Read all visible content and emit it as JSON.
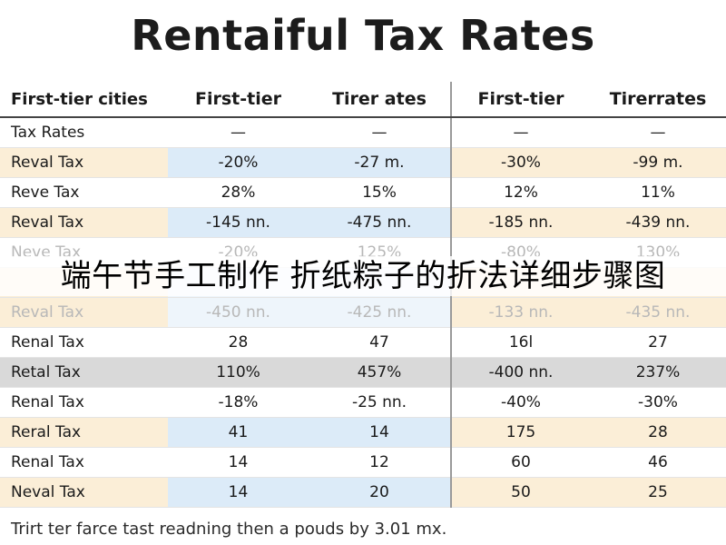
{
  "title": "Rentaiful Tax Rates",
  "banner_text": "端午节手工制作 折纸粽子的折法详细步骤图",
  "footnote": "Trirt ter farce tast readning then a pouds by 3.01 mx.",
  "colors": {
    "beige_row": "#fbeed7",
    "blue_cell": "#dcebf8",
    "grey_row": "#d9d9d9"
  },
  "chart_data": {
    "type": "table",
    "title": "Rentaiful Tax Rates",
    "columns": [
      "First-tier cities",
      "First-tier",
      "Tirer ates",
      "First-tier",
      "Tirerrates"
    ],
    "rows": [
      {
        "label": "Tax Rates",
        "values": [
          "—",
          "—",
          "—",
          "—"
        ],
        "style": "white"
      },
      {
        "label": "Reval Tax",
        "values": [
          "-20%",
          "-27 m.",
          "-30%",
          "-99 m."
        ],
        "style": "beige"
      },
      {
        "label": "Reve Tax",
        "values": [
          "28%",
          "15%",
          "12%",
          "11%"
        ],
        "style": "white"
      },
      {
        "label": "Reval Tax",
        "values": [
          "-145 nn.",
          "-475 nn.",
          "-185 nn.",
          "-439 nn."
        ],
        "style": "beige"
      },
      {
        "label": "Neve Tax",
        "values": [
          "-20%",
          "125%",
          "-80%",
          "130%"
        ],
        "style": "faded"
      },
      {
        "label": "",
        "values": [
          "",
          "",
          "",
          ""
        ],
        "style": "faded-beige"
      },
      {
        "label": "Reval Tax",
        "values": [
          "-450 nn.",
          "-425 nn.",
          "-133 nn.",
          "-435 nn."
        ],
        "style": "faded-beige"
      },
      {
        "label": "Renal Tax",
        "values": [
          "28",
          "47",
          "16l",
          "27"
        ],
        "style": "white"
      },
      {
        "label": "Retal Tax",
        "values": [
          "110%",
          "457%",
          "-400 nn.",
          "237%"
        ],
        "style": "grey"
      },
      {
        "label": "Renal Tax",
        "values": [
          "-18%",
          "-25 nn.",
          "-40%",
          "-30%"
        ],
        "style": "white"
      },
      {
        "label": "Reral Tax",
        "values": [
          "41",
          "14",
          "175",
          "28"
        ],
        "style": "beige"
      },
      {
        "label": "Renal Tax",
        "values": [
          "14",
          "12",
          "60",
          "46"
        ],
        "style": "white"
      },
      {
        "label": "Neval Tax",
        "values": [
          "14",
          "20",
          "50",
          "25"
        ],
        "style": "beige"
      }
    ]
  }
}
